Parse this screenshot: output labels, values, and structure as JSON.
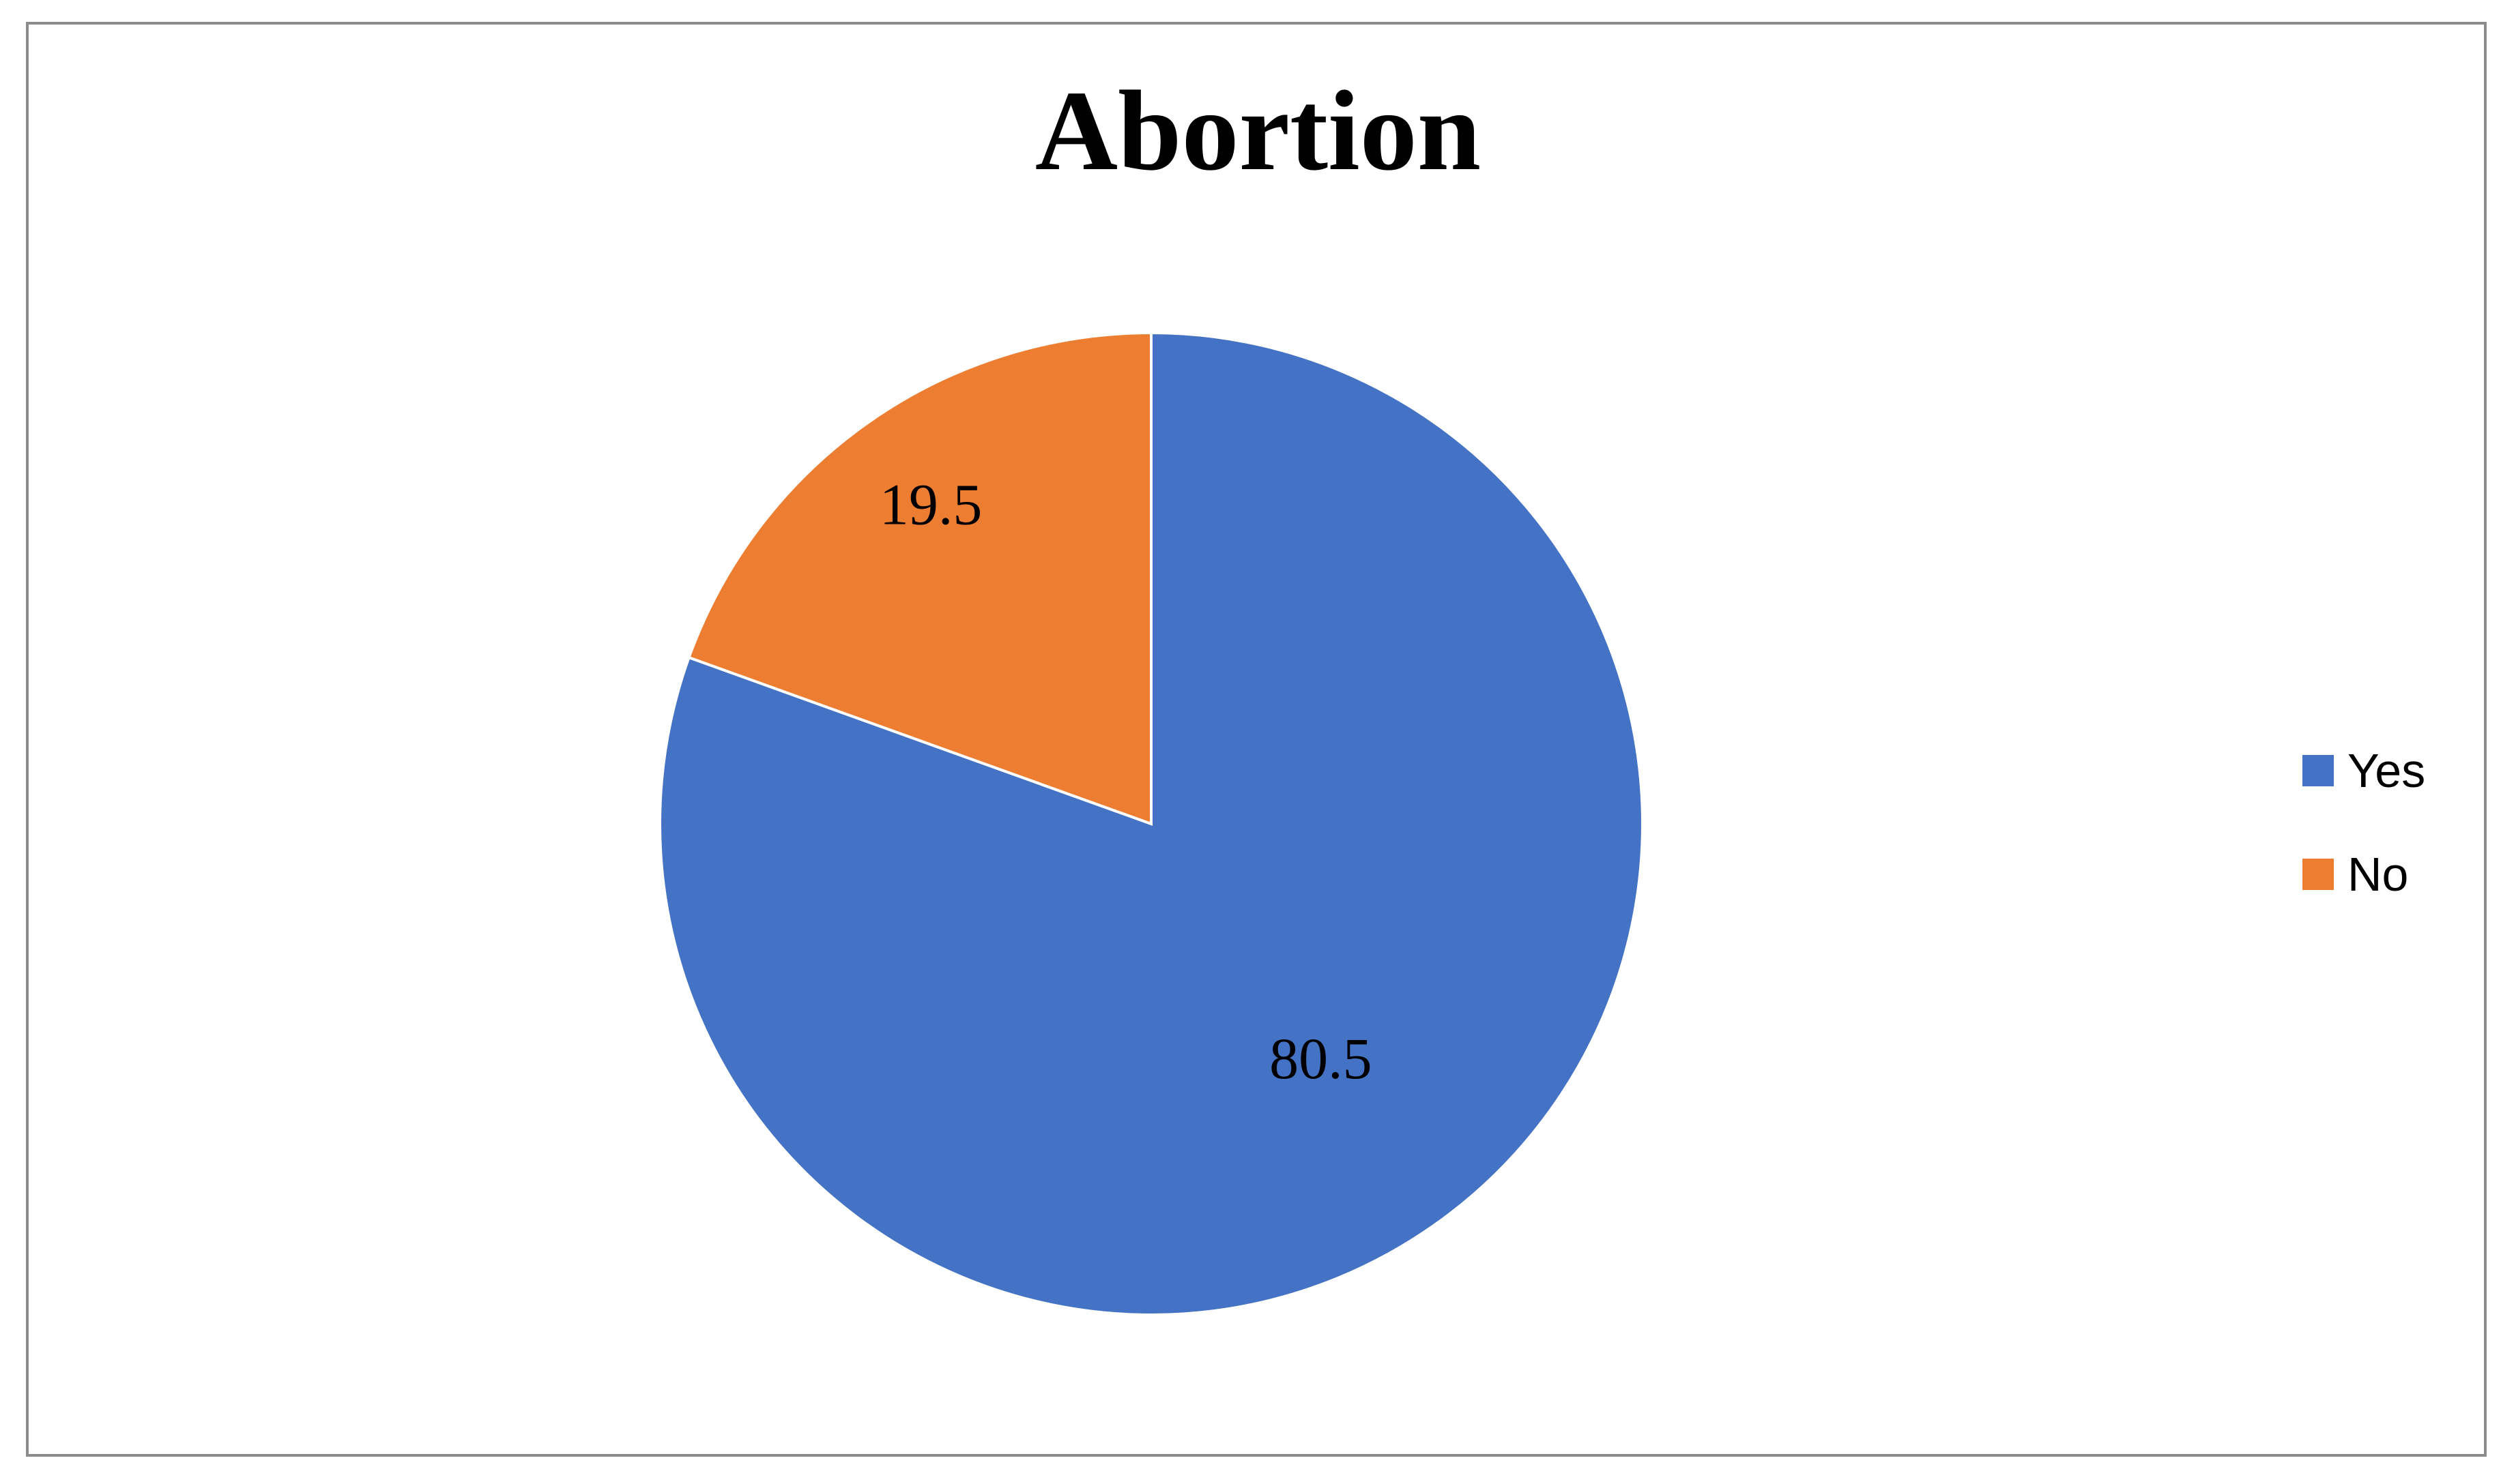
{
  "chart_data": {
    "type": "pie",
    "title": "Abortion",
    "categories": [
      "Yes",
      "No"
    ],
    "values": [
      80.5,
      19.5
    ],
    "data_labels": [
      "80.5",
      "19.5"
    ],
    "colors": [
      "#4472C4",
      "#ED7D31"
    ],
    "legend_position": "right",
    "start_angle": "12 o'clock",
    "direction": "clockwise"
  }
}
